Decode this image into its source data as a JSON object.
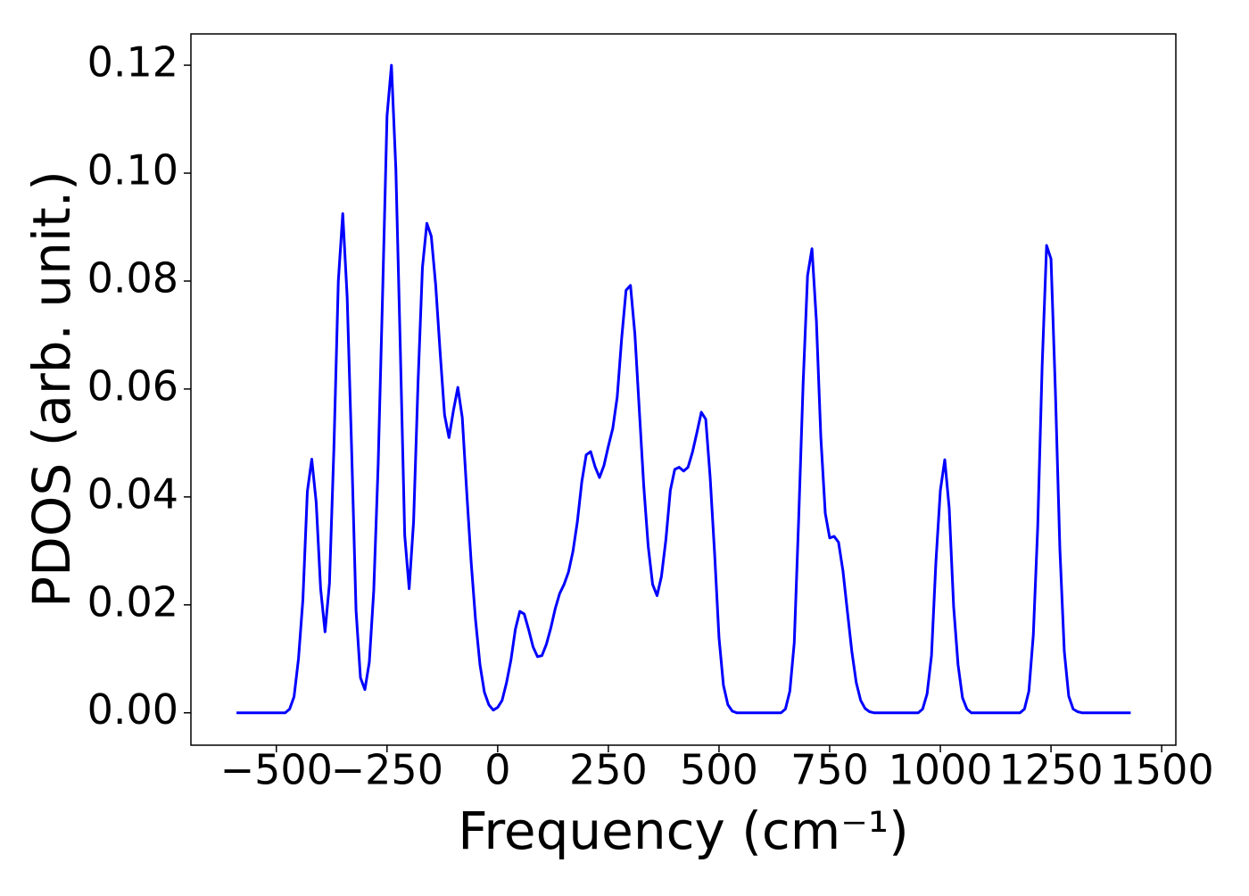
{
  "chart_data": {
    "type": "line",
    "xlabel": "Frequency (cm⁻¹)",
    "ylabel": "PDOS (arb. unit.)",
    "xlim": [
      -693,
      1532
    ],
    "ylim": [
      -0.006,
      0.1258
    ],
    "xticks": [
      {
        "value": -500,
        "label": "−500"
      },
      {
        "value": -250,
        "label": "−250"
      },
      0,
      250,
      500,
      750,
      1000,
      1250,
      1500
    ],
    "yticks": [
      {
        "value": 0,
        "label": "0.00"
      },
      0.02,
      0.04,
      0.06,
      0.08,
      {
        "value": 0.1,
        "label": "0.10"
      },
      0.12
    ],
    "x": [
      -590,
      -480,
      -470,
      -460,
      -450,
      -440,
      -430,
      -420,
      -410,
      -400,
      -390,
      -380,
      -370,
      -360,
      -350,
      -340,
      -330,
      -320,
      -310,
      -300,
      -290,
      -280,
      -270,
      -260,
      -250,
      -240,
      -230,
      -220,
      -210,
      -200,
      -190,
      -180,
      -170,
      -160,
      -150,
      -140,
      -130,
      -120,
      -110,
      -100,
      -90,
      -80,
      -70,
      -60,
      -50,
      -40,
      -30,
      -20,
      -10,
      0,
      10,
      20,
      30,
      40,
      50,
      60,
      70,
      80,
      90,
      100,
      110,
      120,
      130,
      140,
      150,
      160,
      170,
      180,
      190,
      200,
      210,
      220,
      230,
      240,
      250,
      260,
      270,
      280,
      290,
      300,
      310,
      320,
      330,
      340,
      350,
      360,
      370,
      380,
      390,
      400,
      410,
      420,
      430,
      440,
      450,
      460,
      470,
      480,
      490,
      500,
      510,
      520,
      530,
      540,
      640,
      650,
      660,
      670,
      680,
      690,
      700,
      710,
      720,
      730,
      740,
      750,
      760,
      770,
      780,
      790,
      800,
      810,
      820,
      830,
      840,
      850,
      950,
      960,
      970,
      980,
      990,
      1000,
      1010,
      1020,
      1030,
      1040,
      1050,
      1060,
      1070,
      1180,
      1190,
      1200,
      1210,
      1220,
      1230,
      1240,
      1250,
      1260,
      1270,
      1280,
      1290,
      1300,
      1310,
      1320,
      1430
    ],
    "series": [
      {
        "name": "PDOS",
        "color": "#0000ff",
        "values": [
          0,
          0,
          0.0007,
          0.003,
          0.01,
          0.021,
          0.041,
          0.047,
          0.039,
          0.023,
          0.015,
          0.024,
          0.049,
          0.08,
          0.0925,
          0.077,
          0.049,
          0.019,
          0.0065,
          0.0043,
          0.0094,
          0.0226,
          0.046,
          0.0775,
          0.1106,
          0.12,
          0.1007,
          0.0676,
          0.0329,
          0.023,
          0.0354,
          0.061,
          0.0825,
          0.0907,
          0.0883,
          0.0792,
          0.0668,
          0.0552,
          0.051,
          0.056,
          0.0603,
          0.0547,
          0.041,
          0.028,
          0.0172,
          0.0089,
          0.0038,
          0.0015,
          0.0005,
          0.001,
          0.0023,
          0.0056,
          0.0098,
          0.0155,
          0.0188,
          0.0183,
          0.0154,
          0.0122,
          0.0104,
          0.0106,
          0.0127,
          0.0157,
          0.0193,
          0.0221,
          0.0238,
          0.0261,
          0.0299,
          0.0354,
          0.0428,
          0.0478,
          0.0484,
          0.0456,
          0.0436,
          0.0458,
          0.0494,
          0.0527,
          0.0585,
          0.0693,
          0.0783,
          0.0792,
          0.0701,
          0.056,
          0.042,
          0.0309,
          0.0238,
          0.0217,
          0.0253,
          0.0321,
          0.0412,
          0.0451,
          0.0455,
          0.0448,
          0.0455,
          0.0483,
          0.0519,
          0.0557,
          0.0544,
          0.0436,
          0.0296,
          0.0139,
          0.0051,
          0.0015,
          0.0003,
          0,
          0,
          0.0007,
          0.004,
          0.013,
          0.036,
          0.061,
          0.081,
          0.086,
          0.0726,
          0.0511,
          0.037,
          0.0324,
          0.0327,
          0.0316,
          0.0263,
          0.0188,
          0.0114,
          0.0056,
          0.0023,
          0.0008,
          0.0002,
          0,
          0,
          0.0007,
          0.0035,
          0.0106,
          0.028,
          0.0412,
          0.0469,
          0.0379,
          0.0197,
          0.0089,
          0.0028,
          0.0007,
          0,
          0,
          0.0007,
          0.004,
          0.0144,
          0.0345,
          0.0643,
          0.0866,
          0.0841,
          0.0593,
          0.0304,
          0.0114,
          0.0031,
          0.0007,
          0.0002,
          0,
          0
        ]
      }
    ]
  }
}
